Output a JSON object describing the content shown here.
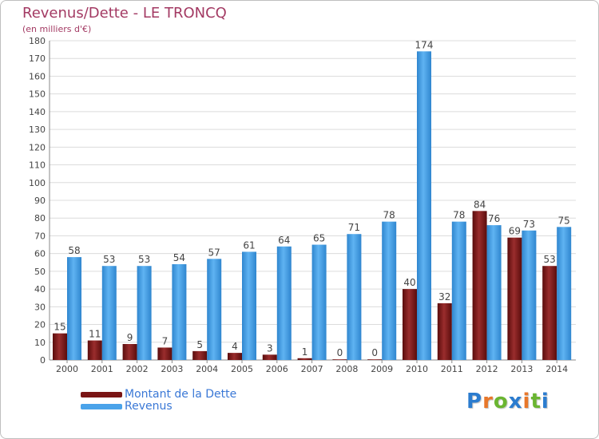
{
  "chart_data": {
    "type": "bar",
    "title": "Revenus/Dette - LE TRONCQ",
    "subtitle": "(en milliers d'€)",
    "categories": [
      "2000",
      "2001",
      "2002",
      "2003",
      "2004",
      "2005",
      "2006",
      "2007",
      "2008",
      "2009",
      "2010",
      "2011",
      "2012",
      "2013",
      "2014"
    ],
    "series": [
      {
        "name": "Montant de la Dette",
        "color": "#7a1515",
        "values": [
          15,
          11,
          9,
          7,
          5,
          4,
          3,
          1,
          0,
          0,
          40,
          32,
          84,
          69,
          53
        ]
      },
      {
        "name": "Revenus",
        "color": "#4aa3ea",
        "values": [
          58,
          53,
          53,
          54,
          57,
          61,
          64,
          65,
          71,
          78,
          174,
          78,
          76,
          73,
          75
        ]
      }
    ],
    "ylim": [
      0,
      180
    ],
    "yticks": [
      0,
      10,
      20,
      30,
      40,
      50,
      60,
      70,
      80,
      90,
      100,
      110,
      120,
      130,
      140,
      150,
      160,
      170,
      180
    ],
    "grid": true,
    "legend": "bottom-left",
    "xlabel": "",
    "ylabel": ""
  },
  "branding": {
    "logo_letters": [
      "P",
      "r",
      "o",
      "x",
      "i",
      "t",
      "i"
    ],
    "logo_colors": [
      "#2b7ccf",
      "#e8772a",
      "#6ab531",
      "#2b7ccf",
      "#e8772a",
      "#6ab531",
      "#2b7ccf"
    ]
  }
}
